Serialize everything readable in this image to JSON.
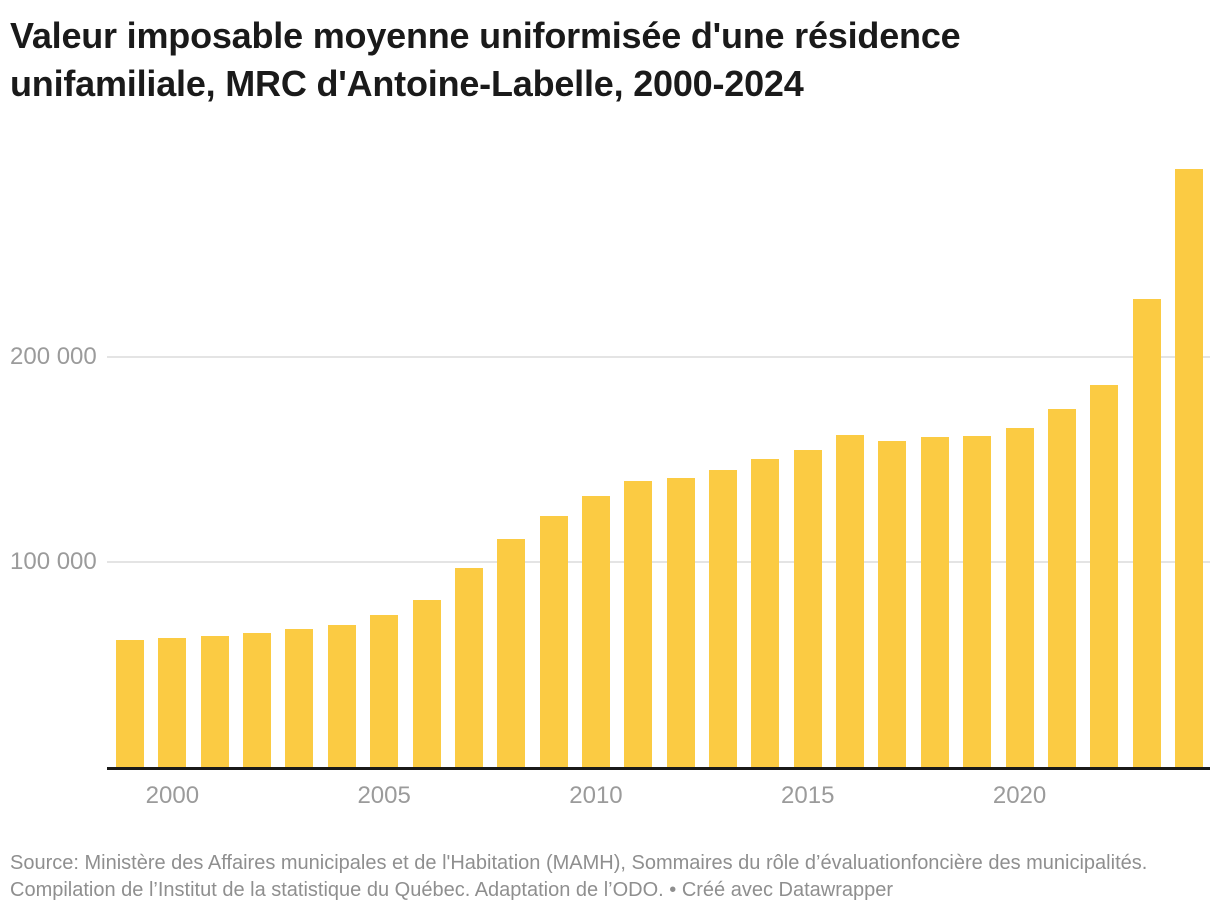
{
  "title": "Valeur imposable moyenne uniformisée d'une résidence unifamiliale, MRC d'Antoine-Labelle, 2000-2024",
  "source": "Source: Ministère des Affaires municipales et de l'Habitation (MAMH), Sommaires du rôle d’évaluationfoncière des municipalités. Compilation de l’Institut de la statistique du Québec. Adaptation de l’ODO. • Créé avec Datawrapper",
  "chart_data": {
    "type": "bar",
    "title": "Valeur imposable moyenne uniformisée d'une résidence unifamiliale, MRC d'Antoine-Labelle, 2000-2024",
    "categories": [
      1999,
      2000,
      2001,
      2002,
      2003,
      2004,
      2005,
      2006,
      2007,
      2008,
      2009,
      2010,
      2011,
      2012,
      2013,
      2014,
      2015,
      2016,
      2017,
      2018,
      2019,
      2020,
      2021,
      2022,
      2023,
      2024
    ],
    "values": [
      62100,
      62900,
      63900,
      65600,
      67100,
      69400,
      74100,
      81300,
      97100,
      111400,
      122600,
      132100,
      139400,
      140900,
      145100,
      150400,
      154500,
      161800,
      158900,
      160800,
      161500,
      165400,
      174500,
      186200,
      228100,
      291900
    ],
    "xlabel": "",
    "ylabel": "",
    "ylim": [
      0,
      295000
    ],
    "y_ticks": [
      {
        "value": 100000,
        "label": "100 000"
      },
      {
        "value": 200000,
        "label": "200 000"
      }
    ],
    "x_ticks": [
      2000,
      2005,
      2010,
      2015,
      2020
    ],
    "grid": "horizontal-only",
    "legend": "none",
    "bar_color": "#FBCB43",
    "axis_line_color": "#191919",
    "tick_label_color": "#9b9b9b"
  }
}
